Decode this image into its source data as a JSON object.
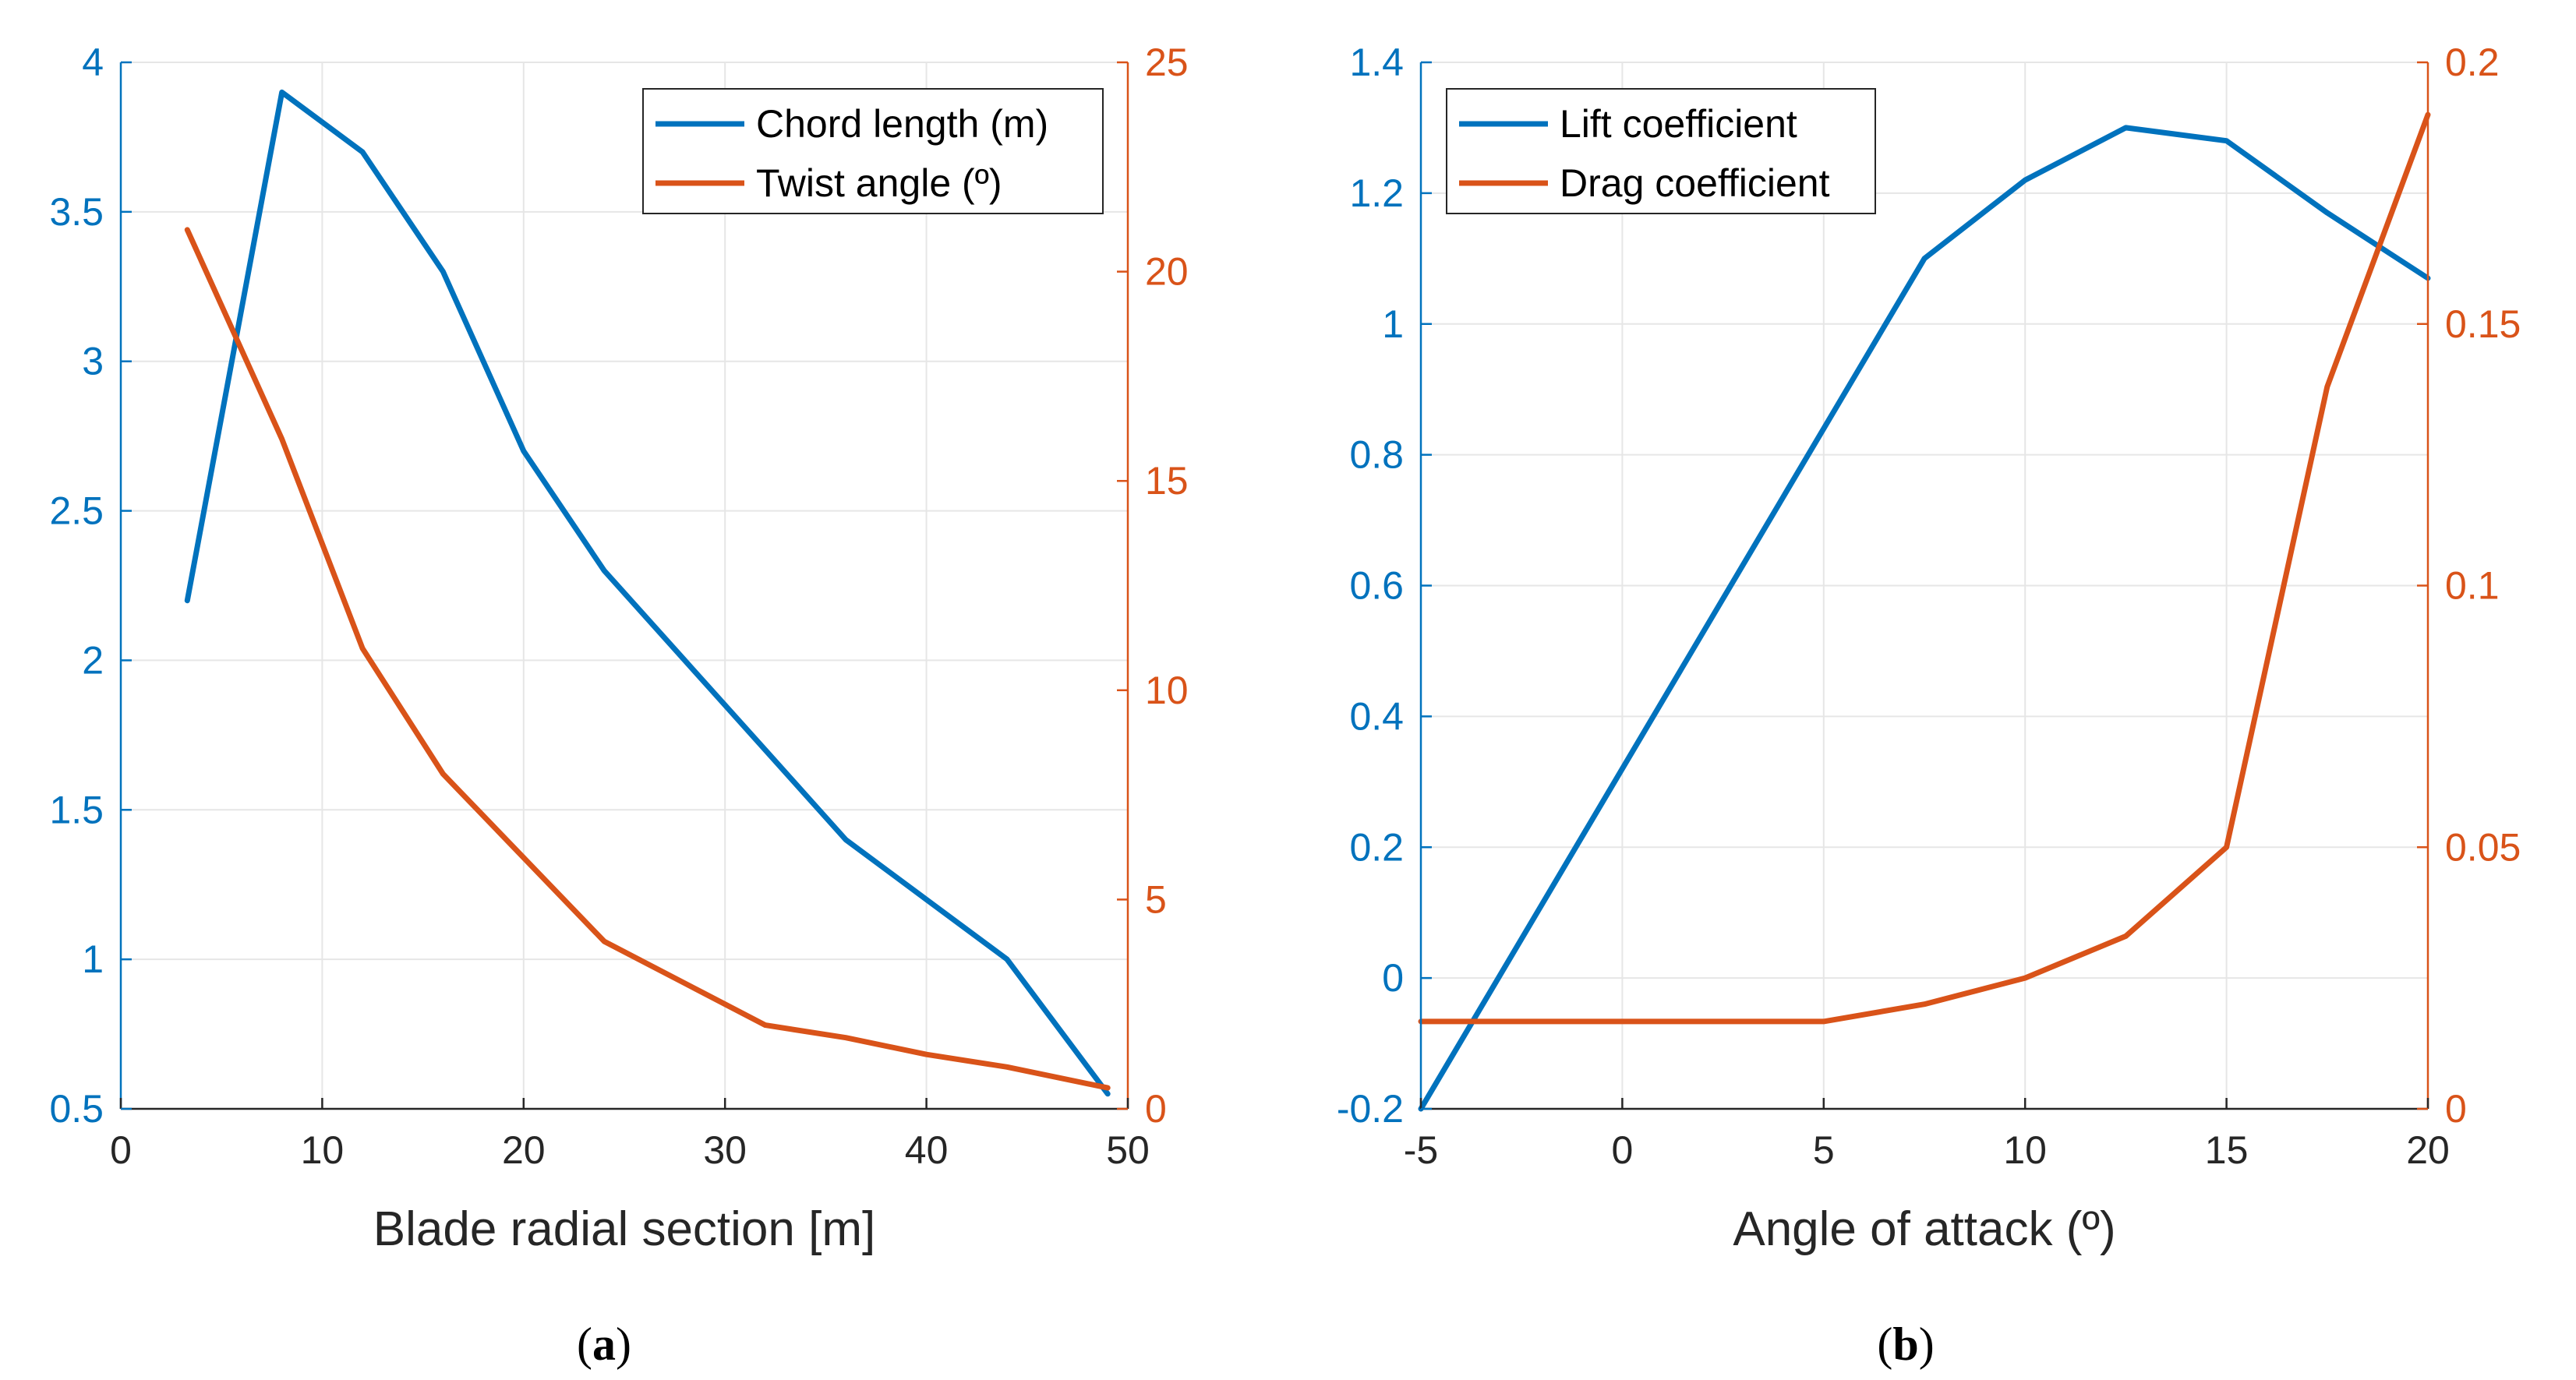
{
  "chart_data": [
    {
      "type": "line",
      "caption_prefix": "(",
      "caption_letter": "a",
      "caption_suffix": ")",
      "title": "",
      "xlabel": "Blade radial section [m]",
      "ylabel": "",
      "xlim": [
        0,
        50
      ],
      "xticks": [
        0,
        10,
        20,
        30,
        40,
        50
      ],
      "ylim_left": [
        0.5,
        4
      ],
      "yticks_left": [
        0.5,
        1,
        1.5,
        2,
        2.5,
        3,
        3.5,
        4
      ],
      "ylim_right": [
        0,
        25
      ],
      "yticks_right": [
        0,
        5,
        10,
        15,
        20,
        25
      ],
      "grid": true,
      "legend_position": "top-right",
      "series": [
        {
          "name": "Chord length (m)",
          "axis": "left",
          "color": "#0072BD",
          "x": [
            3.3,
            8,
            12,
            16,
            20,
            24,
            28,
            32,
            36,
            40,
            44,
            49
          ],
          "y": [
            2.2,
            3.9,
            3.7,
            3.3,
            2.7,
            2.3,
            2.0,
            1.7,
            1.4,
            1.2,
            1.0,
            0.55
          ]
        },
        {
          "name": "Twist angle (º)",
          "axis": "right",
          "color": "#D95319",
          "x": [
            3.3,
            8,
            12,
            16,
            20,
            24,
            28,
            32,
            36,
            40,
            44,
            49
          ],
          "y": [
            21.0,
            16.0,
            11.0,
            8.0,
            6.0,
            4.0,
            3.0,
            2.0,
            1.7,
            1.3,
            1.0,
            0.5
          ]
        }
      ]
    },
    {
      "type": "line",
      "caption_prefix": "(",
      "caption_letter": "b",
      "caption_suffix": ")",
      "title": "",
      "xlabel": "Angle of attack (º)",
      "ylabel": "",
      "xlim": [
        -5,
        20
      ],
      "xticks": [
        -5,
        0,
        5,
        10,
        15,
        20
      ],
      "ylim_left": [
        -0.2,
        1.4
      ],
      "yticks_left": [
        -0.2,
        0,
        0.2,
        0.4,
        0.6,
        0.8,
        1,
        1.2,
        1.4
      ],
      "ylim_right": [
        0,
        0.2
      ],
      "yticks_right": [
        0,
        0.05,
        0.1,
        0.15,
        0.2
      ],
      "grid": true,
      "legend_position": "top-left",
      "series": [
        {
          "name": "Lift coefficient",
          "axis": "left",
          "color": "#0072BD",
          "x": [
            -5,
            7.5,
            10,
            12.5,
            15,
            17.5,
            20
          ],
          "y": [
            -0.2,
            1.1,
            1.22,
            1.3,
            1.28,
            1.17,
            1.07
          ]
        },
        {
          "name": "Drag coefficient",
          "axis": "right",
          "color": "#D95319",
          "x": [
            -5,
            0,
            5,
            7.5,
            10,
            12.5,
            15,
            17.5,
            20
          ],
          "y": [
            0.0167,
            0.0167,
            0.0167,
            0.02,
            0.025,
            0.033,
            0.05,
            0.138,
            0.19
          ]
        }
      ]
    }
  ]
}
